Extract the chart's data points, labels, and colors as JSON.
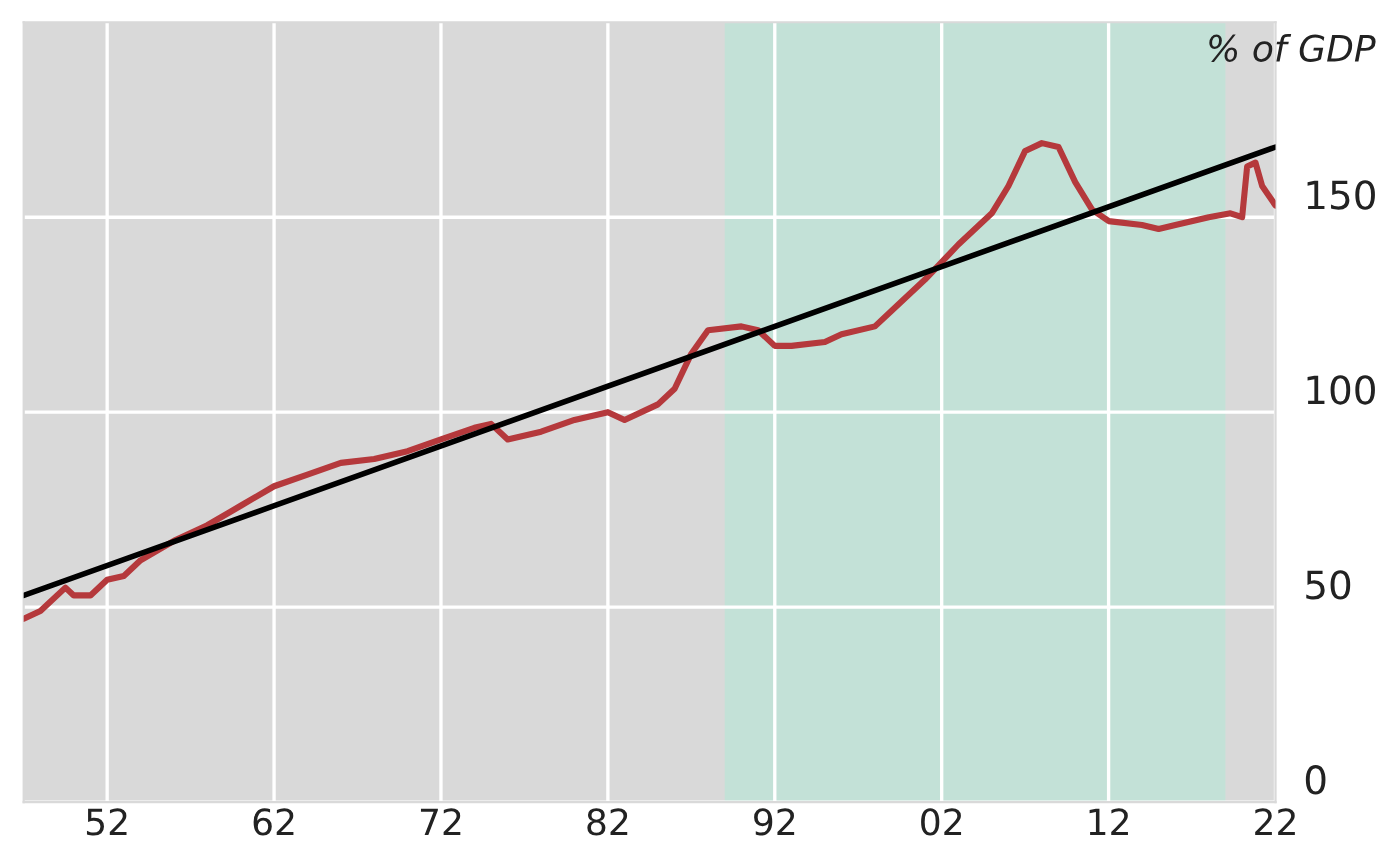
{
  "chart_data": {
    "type": "line",
    "ylabel": "% of GDP",
    "xlim": [
      1947,
      2022
    ],
    "ylim": [
      0,
      200
    ],
    "xticks": [
      {
        "value": 1952,
        "label": "52"
      },
      {
        "value": 1962,
        "label": "62"
      },
      {
        "value": 1972,
        "label": "72"
      },
      {
        "value": 1982,
        "label": "82"
      },
      {
        "value": 1992,
        "label": "92"
      },
      {
        "value": 2002,
        "label": "02"
      },
      {
        "value": 2012,
        "label": "12"
      },
      {
        "value": 2022,
        "label": "22"
      }
    ],
    "yticks": [
      0,
      50,
      100,
      150
    ],
    "grid": true,
    "legend": false,
    "marker": "none",
    "line_style": "solid",
    "bands": [
      {
        "axis": "x",
        "from": 1989,
        "to": 2019,
        "color": "#c3e1d7"
      }
    ],
    "series": [
      {
        "color": "#b5393c",
        "x": [
          1947,
          1948,
          1949.5,
          1950,
          1951,
          1952,
          1953,
          1954,
          1956,
          1958,
          1960,
          1962,
          1964,
          1966,
          1968,
          1970,
          1972,
          1974,
          1975,
          1976,
          1978,
          1980,
          1982,
          1983,
          1985,
          1986,
          1987,
          1988,
          1990,
          1991,
          1992,
          1993,
          1995,
          1996,
          1998,
          1999,
          2001,
          2003,
          2005,
          2006,
          2007,
          2008,
          2009,
          2010,
          2011,
          2012,
          2014,
          2015,
          2016,
          2018,
          2019.3,
          2020,
          2020.3,
          2020.8,
          2021.2,
          2022
        ],
        "values": [
          47,
          49,
          55,
          53,
          53,
          57,
          58,
          62,
          67,
          71,
          76,
          81,
          84,
          87,
          88,
          90,
          93,
          96,
          97,
          93,
          95,
          98,
          100,
          98,
          102,
          106,
          115,
          121,
          122,
          121,
          117,
          117,
          118,
          120,
          122,
          126,
          134,
          143,
          151,
          158,
          167,
          169,
          168,
          159,
          152,
          149,
          148,
          147,
          148,
          150,
          151,
          150,
          163,
          164,
          158,
          153
        ]
      },
      {
        "color": "#000000",
        "x": [
          1947,
          2022
        ],
        "values": [
          53,
          168
        ]
      }
    ]
  }
}
